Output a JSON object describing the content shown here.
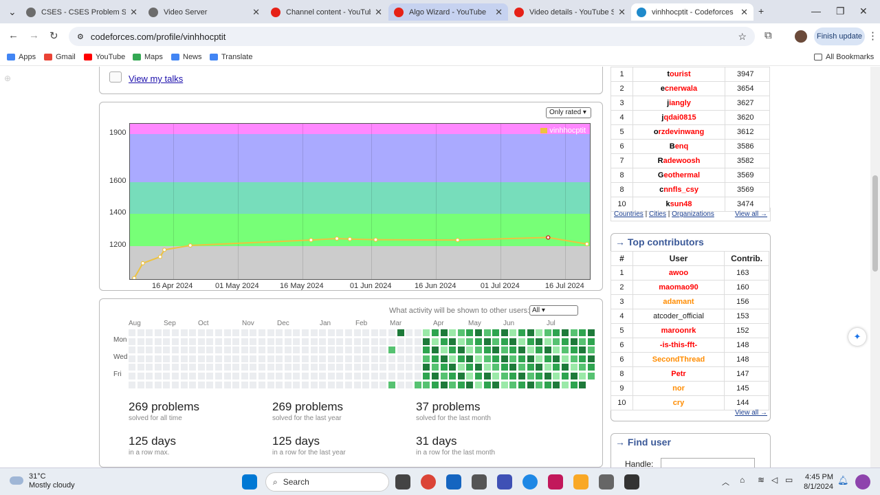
{
  "browser": {
    "tabs": [
      {
        "title": "CSES - CSES Problem Set -",
        "fav": "#6c6c6c",
        "state": "normal",
        "left": 30,
        "width": 178
      },
      {
        "title": "Video Server",
        "fav": "#6c6c6c",
        "state": "normal",
        "left": 208,
        "width": 178
      },
      {
        "title": "Channel content - YouTube",
        "fav": "#e62117",
        "state": "normal",
        "left": 386,
        "width": 178
      },
      {
        "title": "Algo Wizard - YouTube",
        "fav": "#e62117",
        "state": "hl",
        "left": 565,
        "width": 174
      },
      {
        "title": "Video details - YouTube St",
        "fav": "#e62117",
        "state": "normal",
        "left": 740,
        "width": 178
      },
      {
        "title": "vinhhocptit - Codeforces",
        "fav": "#1f8acb",
        "state": "active",
        "left": 918,
        "width": 178
      }
    ],
    "url": "codeforces.com/profile/vinhhocptit",
    "finish_update": "Finish update",
    "bookmarks": [
      {
        "label": "Apps",
        "color": "#4285f4"
      },
      {
        "label": "Gmail",
        "color": "#ea4335"
      },
      {
        "label": "YouTube",
        "color": "#ff0000"
      },
      {
        "label": "Maps",
        "color": "#34a853"
      },
      {
        "label": "News",
        "color": "#4285f4"
      },
      {
        "label": "Translate",
        "color": "#4285f4"
      }
    ],
    "all_bookmarks": "All Bookmarks"
  },
  "talks": {
    "link": "View my talks"
  },
  "rating_chart": {
    "only_rated": "Only rated ▾",
    "legend": "vinhhocptit"
  },
  "chart_data": {
    "type": "line",
    "title": "",
    "series": [
      {
        "name": "vinhhocptit",
        "color": "#edc240"
      }
    ],
    "points": [
      {
        "date": "2024-04-07",
        "rating": 1000
      },
      {
        "date": "2024-04-09",
        "rating": 1093
      },
      {
        "date": "2024-04-13",
        "rating": 1133
      },
      {
        "date": "2024-04-14",
        "rating": 1177
      },
      {
        "date": "2024-04-20",
        "rating": 1204
      },
      {
        "date": "2024-05-18",
        "rating": 1238
      },
      {
        "date": "2024-05-24",
        "rating": 1247
      },
      {
        "date": "2024-05-27",
        "rating": 1244
      },
      {
        "date": "2024-06-02",
        "rating": 1240
      },
      {
        "date": "2024-06-21",
        "rating": 1238
      },
      {
        "date": "2024-07-12",
        "rating": 1254
      },
      {
        "date": "2024-07-21",
        "rating": 1213
      }
    ],
    "y_ticks": [
      1200,
      1400,
      1600,
      1900
    ],
    "x_ticks": [
      "16 Apr 2024",
      "01 May 2024",
      "16 May 2024",
      "01 Jun 2024",
      "16 Jun 2024",
      "01 Jul 2024",
      "16 Jul 2024"
    ],
    "ylim": [
      985,
      1965
    ],
    "bands": [
      {
        "from": 985,
        "to": 1200,
        "color": "#cccccc"
      },
      {
        "from": 1200,
        "to": 1400,
        "color": "#77ff77"
      },
      {
        "from": 1400,
        "to": 1600,
        "color": "#77ddbb"
      },
      {
        "from": 1600,
        "to": 1900,
        "color": "#aaaaff"
      },
      {
        "from": 1900,
        "to": 1965,
        "color": "#ff88ff"
      }
    ],
    "highlight_point": "2024-07-12"
  },
  "activity": {
    "label": "What activity will be shown to other users:",
    "select_value": "All ▾",
    "months": [
      "Aug",
      "Sep",
      "Oct",
      "Nov",
      "Dec",
      "Jan",
      "Feb",
      "Mar",
      "Apr",
      "May",
      "Jun",
      "Jul"
    ],
    "days": [
      "Mon",
      "Wed",
      "Fri"
    ]
  },
  "stats": [
    {
      "big": "269 problems",
      "small": "solved for all time"
    },
    {
      "big": "269 problems",
      "small": "solved for the last year"
    },
    {
      "big": "37 problems",
      "small": "solved for the last month"
    },
    {
      "big": "125 days",
      "small": "in a row max."
    },
    {
      "big": "125 days",
      "small": "in a row for the last year"
    },
    {
      "big": "31 days",
      "small": "in a row for the last month"
    }
  ],
  "top_rated": {
    "rows": [
      {
        "n": "1",
        "first": "t",
        "rest": "ourist",
        "v": "3947",
        "cls": "red"
      },
      {
        "n": "2",
        "first": "e",
        "rest": "cnerwala",
        "v": "3654",
        "cls": "red"
      },
      {
        "n": "3",
        "first": "j",
        "rest": "iangly",
        "v": "3627",
        "cls": "red"
      },
      {
        "n": "4",
        "first": "j",
        "rest": "qdai0815",
        "v": "3620",
        "cls": "red"
      },
      {
        "n": "5",
        "first": "o",
        "rest": "rzdevinwang",
        "v": "3612",
        "cls": "red"
      },
      {
        "n": "6",
        "first": "B",
        "rest": "enq",
        "v": "3586",
        "cls": "red"
      },
      {
        "n": "7",
        "first": "R",
        "rest": "adewoosh",
        "v": "3582",
        "cls": "red"
      },
      {
        "n": "8",
        "first": "G",
        "rest": "eothermal",
        "v": "3569",
        "cls": "red"
      },
      {
        "n": "8",
        "first": "c",
        "rest": "nnfls_csy",
        "v": "3569",
        "cls": "red"
      },
      {
        "n": "10",
        "first": "k",
        "rest": "sun48",
        "v": "3474",
        "cls": "red"
      }
    ],
    "footer_links": [
      "Countries",
      "Cities",
      "Organizations"
    ],
    "view_all": "View all →"
  },
  "top_contributors": {
    "title": "→ Top contributors",
    "headers": [
      "#",
      "User",
      "Contrib."
    ],
    "rows": [
      {
        "n": "1",
        "u": "awoo",
        "v": "163",
        "cls": "red"
      },
      {
        "n": "2",
        "u": "maomao90",
        "v": "160",
        "cls": "red"
      },
      {
        "n": "3",
        "u": "adamant",
        "v": "156",
        "cls": "orange"
      },
      {
        "n": "4",
        "u": "atcoder_official",
        "v": "153",
        "cls": "black"
      },
      {
        "n": "5",
        "u": "maroonrk",
        "v": "152",
        "cls": "red"
      },
      {
        "n": "6",
        "u": "-is-this-fft-",
        "v": "148",
        "cls": "red"
      },
      {
        "n": "6",
        "u": "SecondThread",
        "v": "148",
        "cls": "orange"
      },
      {
        "n": "8",
        "u": "Petr",
        "v": "147",
        "cls": "red"
      },
      {
        "n": "9",
        "u": "nor",
        "v": "145",
        "cls": "orange"
      },
      {
        "n": "10",
        "u": "cry",
        "v": "144",
        "cls": "orange"
      }
    ],
    "view_all": "View all →"
  },
  "find_user": {
    "title": "→ Find user",
    "label": "Handle:"
  },
  "taskbar": {
    "temp": "31°C",
    "weather": "Mostly cloudy",
    "search": "Search",
    "time": "4:45 PM",
    "date": "8/1/2024"
  }
}
